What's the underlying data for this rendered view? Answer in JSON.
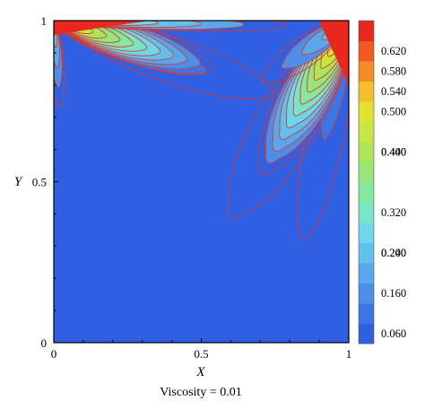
{
  "chart_data": {
    "type": "heatmap",
    "subtype": "filled-contour",
    "xlabel": "X",
    "ylabel": "Y",
    "xlim": [
      0,
      1
    ],
    "ylim": [
      0,
      1
    ],
    "xticks": [
      0,
      0.5,
      1
    ],
    "yticks": [
      0,
      0.5,
      1
    ],
    "xtick_labels": [
      "0",
      "0.5",
      "1"
    ],
    "ytick_labels": [
      "0",
      "0.5",
      "1"
    ],
    "caption": "Viscosity = 0.01",
    "grid": false,
    "legend_placement": "right",
    "colorbar": {
      "levels": [
        0.06,
        0.1,
        0.14,
        0.18,
        0.22,
        0.26,
        0.3,
        0.34,
        0.38,
        0.42,
        0.46,
        0.5,
        0.54,
        0.58,
        0.62,
        0.66
      ],
      "tick_labels": [
        "0.620",
        "0.580",
        "0.540",
        "0.500",
        "0.440",
        "0.400",
        "0.320",
        "0.240",
        "0.200",
        "0.160",
        "0.060"
      ],
      "colors": [
        "#2f5fe3",
        "#3b75e6",
        "#4c8ee8",
        "#5aa7ec",
        "#63c0ee",
        "#6ed8ea",
        "#7be3c6",
        "#86e79f",
        "#97e679",
        "#aee65a",
        "#c7e63f",
        "#e2e12f",
        "#f3bf2a",
        "#f48d26",
        "#ef5a22",
        "#e8281e"
      ]
    },
    "background_color": "#2f5fe3",
    "contour_line_color": "#d23a3a",
    "features": [
      {
        "name": "top-left-lobe",
        "center": [
          0.28,
          0.91
        ],
        "peak_value": 0.62
      },
      {
        "name": "top-right-lobe",
        "center": [
          0.86,
          0.72
        ],
        "peak_value": 0.62
      }
    ]
  }
}
